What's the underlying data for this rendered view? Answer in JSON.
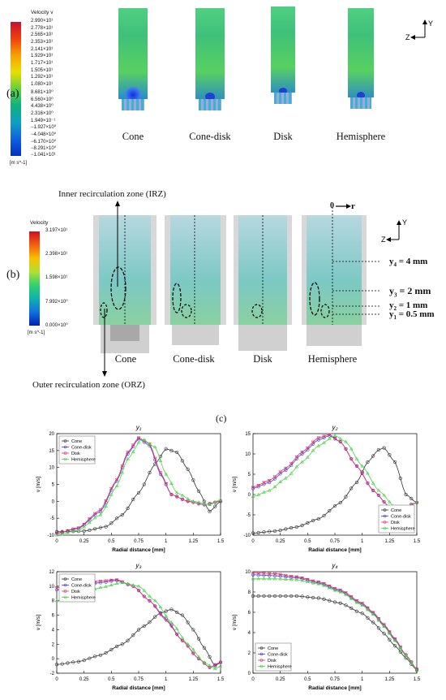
{
  "panel_a": {
    "tag": "(a)",
    "colorbar": {
      "title": "Velocity v",
      "unit": "[m s^-1]",
      "labels": [
        "2.990×10¹",
        "2.778×10¹",
        "2.565×10¹",
        "2.353×10¹",
        "2.141×10¹",
        "1.929×10¹",
        "1.717×10¹",
        "1.505×10¹",
        "1.292×10¹",
        "1.080×10¹",
        "8.681×10⁰",
        "6.560×10⁰",
        "4.438×10⁰",
        "2.316×10⁰",
        "1.949×10⁻¹",
        "−1.927×10⁰",
        "−4.048×10⁰",
        "−6.170×10⁰",
        "−8.291×10⁰",
        "−1.041×10¹"
      ]
    },
    "names": [
      "Cone",
      "Cone-disk",
      "Disk",
      "Hemisphere"
    ],
    "axes": {
      "y": "Y",
      "z": "Z"
    }
  },
  "panel_b": {
    "tag": "(b)",
    "colorbar": {
      "title": "Velocity",
      "unit": "[m s^-1]",
      "labels": [
        "3.197×10¹",
        "2.398×10¹",
        "1.598×10¹",
        "7.992×10⁰",
        "0.000×10⁰"
      ]
    },
    "irz": "Inner recirculation zone (IRZ)",
    "orz": "Outer recirculation zone (ORZ)",
    "names": [
      "Cone",
      "Cone-disk",
      "Disk",
      "Hemisphere"
    ],
    "origin": "0",
    "r": "r",
    "axes": {
      "y": "Y",
      "z": "Z"
    },
    "levels": [
      {
        "sym": "y",
        "sub": "4",
        "val": " = 4 mm"
      },
      {
        "sym": "y",
        "sub": "3",
        "val": " = 2 mm"
      },
      {
        "sym": "y",
        "sub": "2",
        "val": " = 1 mm"
      },
      {
        "sym": "y",
        "sub": "1",
        "val": " = 0.5 mm"
      }
    ]
  },
  "panel_c": {
    "tag": "(c)"
  },
  "colors": {
    "cone": "#333333",
    "cone_disk": "#4a3fd1",
    "disk": "#e0306a",
    "hemisphere": "#4fd04a"
  },
  "chart_data": [
    {
      "type": "line",
      "title": "y₁",
      "xlabel": "Radial distance [mm]",
      "ylabel": "v [m/s]",
      "xlim": [
        0,
        1.5
      ],
      "ylim": [
        -10,
        20
      ],
      "xticks": [
        0,
        0.25,
        0.5,
        0.75,
        1,
        1.25,
        1.5
      ],
      "yticks": [
        -10,
        -5,
        0,
        5,
        10,
        15,
        20
      ],
      "legend": "top-left",
      "series": [
        {
          "name": "Cone",
          "points": [
            [
              0,
              -9
            ],
            [
              0.25,
              -8.8
            ],
            [
              0.45,
              -7.5
            ],
            [
              0.6,
              -4
            ],
            [
              0.75,
              2.5
            ],
            [
              0.9,
              11
            ],
            [
              1.0,
              15.5
            ],
            [
              1.1,
              14.5
            ],
            [
              1.2,
              9.5
            ],
            [
              1.3,
              3
            ],
            [
              1.4,
              -3
            ],
            [
              1.5,
              0
            ]
          ]
        },
        {
          "name": "Cone-disk",
          "points": [
            [
              0,
              -9.5
            ],
            [
              0.2,
              -8
            ],
            [
              0.4,
              -3
            ],
            [
              0.55,
              6
            ],
            [
              0.65,
              14
            ],
            [
              0.75,
              18.5
            ],
            [
              0.85,
              16.5
            ],
            [
              0.95,
              8
            ],
            [
              1.05,
              2
            ],
            [
              1.2,
              0
            ],
            [
              1.35,
              -1
            ],
            [
              1.5,
              0
            ]
          ]
        },
        {
          "name": "Disk",
          "points": [
            [
              0,
              -9.5
            ],
            [
              0.2,
              -7.8
            ],
            [
              0.4,
              -2.5
            ],
            [
              0.55,
              6.5
            ],
            [
              0.65,
              14.5
            ],
            [
              0.75,
              18.8
            ],
            [
              0.85,
              17
            ],
            [
              0.95,
              8.5
            ],
            [
              1.05,
              2
            ],
            [
              1.2,
              0
            ],
            [
              1.35,
              -1
            ],
            [
              1.5,
              0
            ]
          ]
        },
        {
          "name": "Hemisphere",
          "points": [
            [
              0,
              -10
            ],
            [
              0.2,
              -8.5
            ],
            [
              0.4,
              -4
            ],
            [
              0.55,
              4.5
            ],
            [
              0.65,
              12.5
            ],
            [
              0.78,
              18.5
            ],
            [
              0.9,
              16
            ],
            [
              1.0,
              8
            ],
            [
              1.1,
              2.5
            ],
            [
              1.25,
              0
            ],
            [
              1.4,
              -1
            ],
            [
              1.5,
              0.5
            ]
          ]
        }
      ]
    },
    {
      "type": "line",
      "title": "y₂",
      "xlabel": "Radial distance [mm]",
      "ylabel": "v [m/s]",
      "xlim": [
        0,
        1.5
      ],
      "ylim": [
        -10,
        15
      ],
      "xticks": [
        0,
        0.25,
        0.5,
        0.75,
        1,
        1.25,
        1.5
      ],
      "yticks": [
        -10,
        -5,
        0,
        5,
        10,
        15
      ],
      "legend": "bottom-right",
      "series": [
        {
          "name": "Cone",
          "points": [
            [
              0,
              -9.5
            ],
            [
              0.2,
              -9
            ],
            [
              0.4,
              -8
            ],
            [
              0.6,
              -6
            ],
            [
              0.8,
              -2
            ],
            [
              0.95,
              3
            ],
            [
              1.05,
              8
            ],
            [
              1.15,
              11
            ],
            [
              1.2,
              11.5
            ],
            [
              1.3,
              8
            ],
            [
              1.4,
              0
            ],
            [
              1.5,
              -2
            ]
          ]
        },
        {
          "name": "Cone-disk",
          "points": [
            [
              0,
              1.5
            ],
            [
              0.15,
              3
            ],
            [
              0.3,
              6
            ],
            [
              0.45,
              10
            ],
            [
              0.6,
              13.5
            ],
            [
              0.7,
              14.5
            ],
            [
              0.8,
              13
            ],
            [
              0.95,
              7
            ],
            [
              1.1,
              1
            ],
            [
              1.25,
              -3
            ],
            [
              1.35,
              -3.5
            ],
            [
              1.5,
              -2
            ]
          ]
        },
        {
          "name": "Disk",
          "points": [
            [
              0,
              1.8
            ],
            [
              0.15,
              3.5
            ],
            [
              0.3,
              6.5
            ],
            [
              0.45,
              10.5
            ],
            [
              0.6,
              14
            ],
            [
              0.7,
              14.8
            ],
            [
              0.8,
              13
            ],
            [
              0.95,
              7
            ],
            [
              1.1,
              1
            ],
            [
              1.25,
              -3
            ],
            [
              1.35,
              -3.5
            ],
            [
              1.5,
              -2
            ]
          ]
        },
        {
          "name": "Hemisphere",
          "points": [
            [
              0,
              -0.5
            ],
            [
              0.15,
              1
            ],
            [
              0.3,
              4
            ],
            [
              0.45,
              8
            ],
            [
              0.6,
              12
            ],
            [
              0.75,
              14.5
            ],
            [
              0.85,
              13
            ],
            [
              1.0,
              7
            ],
            [
              1.15,
              1
            ],
            [
              1.3,
              -3
            ],
            [
              1.4,
              -3.5
            ],
            [
              1.5,
              -2
            ]
          ]
        }
      ]
    },
    {
      "type": "line",
      "title": "y₃",
      "xlabel": "Radial distance [mm]",
      "ylabel": "v [m/s]",
      "xlim": [
        0,
        1.5
      ],
      "ylim": [
        -2,
        12
      ],
      "xticks": [
        0,
        0.25,
        0.5,
        0.75,
        1,
        1.25,
        1.5
      ],
      "yticks": [
        -2,
        0,
        2,
        4,
        6,
        8,
        10,
        12
      ],
      "legend": "top-left",
      "series": [
        {
          "name": "Cone",
          "points": [
            [
              0,
              -0.8
            ],
            [
              0.2,
              -0.4
            ],
            [
              0.4,
              0.5
            ],
            [
              0.6,
              2
            ],
            [
              0.8,
              4.5
            ],
            [
              0.95,
              6.3
            ],
            [
              1.05,
              6.8
            ],
            [
              1.15,
              6
            ],
            [
              1.25,
              4
            ],
            [
              1.35,
              1.5
            ],
            [
              1.45,
              -1
            ],
            [
              1.5,
              -0.5
            ]
          ]
        },
        {
          "name": "Cone-disk",
          "points": [
            [
              0,
              9.5
            ],
            [
              0.2,
              10
            ],
            [
              0.4,
              10.5
            ],
            [
              0.55,
              10.8
            ],
            [
              0.7,
              10
            ],
            [
              0.85,
              8
            ],
            [
              1.0,
              5.5
            ],
            [
              1.15,
              2.5
            ],
            [
              1.3,
              0
            ],
            [
              1.4,
              -1.2
            ],
            [
              1.5,
              -0.5
            ]
          ]
        },
        {
          "name": "Disk",
          "points": [
            [
              0,
              9.8
            ],
            [
              0.2,
              10.3
            ],
            [
              0.4,
              10.7
            ],
            [
              0.55,
              10.9
            ],
            [
              0.7,
              10
            ],
            [
              0.85,
              8
            ],
            [
              1.0,
              5.3
            ],
            [
              1.15,
              2.5
            ],
            [
              1.3,
              0
            ],
            [
              1.4,
              -1.2
            ],
            [
              1.5,
              -0.5
            ]
          ]
        },
        {
          "name": "Hemisphere",
          "points": [
            [
              0,
              8
            ],
            [
              0.2,
              8.8
            ],
            [
              0.4,
              9.8
            ],
            [
              0.6,
              10.5
            ],
            [
              0.75,
              10
            ],
            [
              0.9,
              8
            ],
            [
              1.05,
              5
            ],
            [
              1.2,
              2
            ],
            [
              1.35,
              -0.5
            ],
            [
              1.45,
              -1.4
            ],
            [
              1.5,
              -1
            ]
          ]
        }
      ]
    },
    {
      "type": "line",
      "title": "y₄",
      "xlabel": "Radial distance [mm]",
      "ylabel": "v [m/s]",
      "xlim": [
        0,
        1.5
      ],
      "ylim": [
        0,
        10
      ],
      "xticks": [
        0,
        0.25,
        0.5,
        0.75,
        1,
        1.25,
        1.5
      ],
      "yticks": [
        0,
        2,
        4,
        6,
        8,
        10
      ],
      "legend": "bottom-left",
      "series": [
        {
          "name": "Cone",
          "points": [
            [
              0,
              7.6
            ],
            [
              0.2,
              7.6
            ],
            [
              0.4,
              7.6
            ],
            [
              0.6,
              7.4
            ],
            [
              0.8,
              6.9
            ],
            [
              1.0,
              5.9
            ],
            [
              1.1,
              5
            ],
            [
              1.2,
              3.9
            ],
            [
              1.3,
              2.7
            ],
            [
              1.4,
              1.5
            ],
            [
              1.5,
              0.3
            ]
          ]
        },
        {
          "name": "Cone-disk",
          "points": [
            [
              0,
              9.7
            ],
            [
              0.2,
              9.6
            ],
            [
              0.4,
              9.4
            ],
            [
              0.6,
              8.9
            ],
            [
              0.8,
              8.1
            ],
            [
              1.0,
              6.8
            ],
            [
              1.1,
              5.9
            ],
            [
              1.2,
              4.7
            ],
            [
              1.3,
              3.3
            ],
            [
              1.4,
              1.8
            ],
            [
              1.5,
              0.4
            ]
          ]
        },
        {
          "name": "Disk",
          "points": [
            [
              0,
              9.9
            ],
            [
              0.2,
              9.8
            ],
            [
              0.4,
              9.5
            ],
            [
              0.6,
              9
            ],
            [
              0.8,
              8.2
            ],
            [
              1.0,
              6.9
            ],
            [
              1.1,
              6
            ],
            [
              1.2,
              4.8
            ],
            [
              1.3,
              3.4
            ],
            [
              1.4,
              1.8
            ],
            [
              1.5,
              0.4
            ]
          ]
        },
        {
          "name": "Hemisphere",
          "points": [
            [
              0,
              9.3
            ],
            [
              0.2,
              9.3
            ],
            [
              0.4,
              9.2
            ],
            [
              0.6,
              8.8
            ],
            [
              0.8,
              8
            ],
            [
              1.0,
              6.7
            ],
            [
              1.1,
              5.8
            ],
            [
              1.2,
              4.6
            ],
            [
              1.3,
              3.2
            ],
            [
              1.4,
              1.7
            ],
            [
              1.5,
              0.3
            ]
          ]
        }
      ]
    }
  ]
}
